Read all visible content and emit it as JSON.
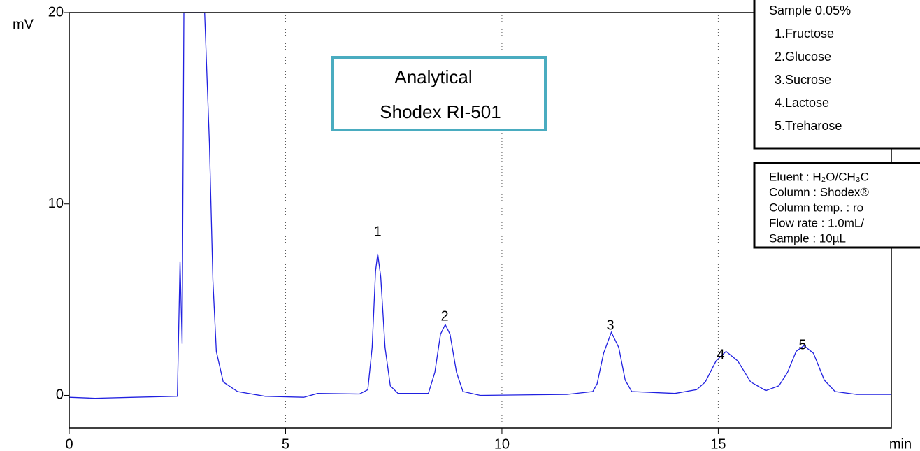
{
  "chart_data": {
    "type": "line",
    "x": [
      0,
      0.6,
      1.5,
      2.5,
      2.56,
      2.61,
      2.65,
      3.13,
      3.24,
      3.32,
      3.4,
      3.56,
      3.89,
      4.53,
      5.42,
      5.74,
      6.71,
      6.9,
      7.0,
      7.08,
      7.13,
      7.2,
      7.3,
      7.42,
      7.6,
      8.3,
      8.45,
      8.58,
      8.69,
      8.8,
      8.95,
      9.1,
      9.5,
      11.5,
      12.1,
      12.2,
      12.35,
      12.53,
      12.7,
      12.85,
      13.0,
      14.0,
      14.5,
      14.7,
      14.95,
      15.18,
      15.45,
      15.75,
      16.1,
      16.4,
      16.6,
      16.8,
      16.98,
      17.2,
      17.45,
      17.7,
      18.2,
      19
    ],
    "series": [
      {
        "color": "#2020e0",
        "values": [
          -0.1,
          -0.15,
          -0.1,
          -0.05,
          7.0,
          2.7,
          20,
          20,
          13.2,
          6.0,
          2.3,
          0.7,
          0.2,
          -0.05,
          -0.1,
          0.1,
          0.07,
          0.3,
          2.5,
          6.5,
          7.4,
          6.2,
          2.5,
          0.5,
          0.1,
          0.1,
          1.2,
          3.2,
          3.7,
          3.2,
          1.2,
          0.2,
          0.0,
          0.05,
          0.2,
          0.6,
          2.2,
          3.3,
          2.5,
          0.8,
          0.2,
          0.1,
          0.3,
          0.7,
          1.8,
          2.3,
          1.8,
          0.7,
          0.25,
          0.5,
          1.2,
          2.3,
          2.6,
          2.2,
          0.8,
          0.2,
          0.05,
          0.05
        ]
      }
    ],
    "xlim": [
      0,
      19
    ],
    "xticks": [
      0,
      5,
      10,
      15
    ],
    "ylim": [
      -1.7,
      20
    ],
    "yticks": [
      0,
      10,
      20
    ],
    "grid": "x",
    "xlabel": "min",
    "ylabel": "mV",
    "peak_labels": [
      "1",
      "2",
      "3",
      "4",
      "5"
    ],
    "box_title": [
      "Analytical",
      "Shodex RI-501"
    ],
    "sample_box": [
      "Sample 0.05%",
      "1.Fructose",
      "2.Glucose",
      "3.Sucrose",
      "4.Lactose",
      "5.Treharose"
    ],
    "conditions_box": [
      "Eluent : H₂O/CH₃C",
      "Column : Shodex®",
      "Column temp. : ro",
      "Flow rate : 1.0mL/",
      "Sample : 10µL"
    ]
  }
}
